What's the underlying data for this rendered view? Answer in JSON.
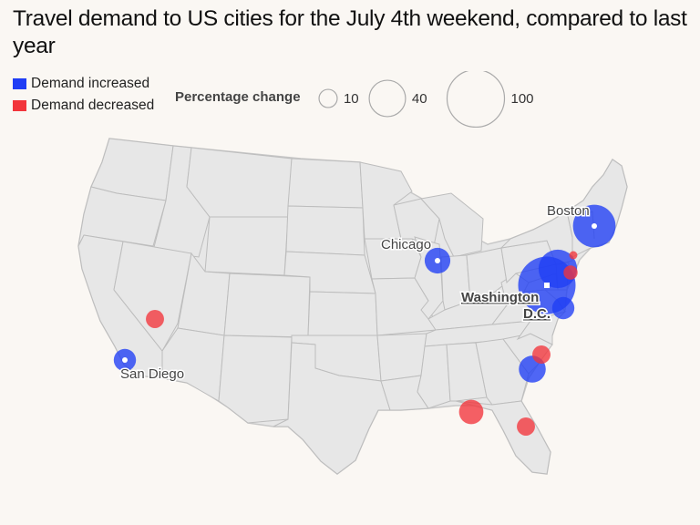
{
  "title": "Travel demand to US cities for the July 4th weekend, compared to last year",
  "legend": {
    "increase": {
      "label": "Demand increased",
      "color": "#1f3df5"
    },
    "decrease": {
      "label": "Demand decreased",
      "color": "#f2353b"
    },
    "size_title": "Percentage change",
    "size_values": [
      10,
      40,
      100
    ]
  },
  "cities": [
    {
      "name": "Boston",
      "labeled": true,
      "change": 55,
      "direction": "increase"
    },
    {
      "name": "Chicago",
      "labeled": true,
      "change": 20,
      "direction": "increase"
    },
    {
      "name": "Washington",
      "name2": "D.C.",
      "labeled": true,
      "change": 100,
      "direction": "increase"
    },
    {
      "name": "San Diego",
      "labeled": true,
      "change": 15,
      "direction": "increase"
    },
    {
      "name": "",
      "labeled": false,
      "change": 45,
      "direction": "increase"
    },
    {
      "name": "",
      "labeled": false,
      "change": 15,
      "direction": "increase"
    },
    {
      "name": "",
      "labeled": false,
      "change": 22,
      "direction": "increase"
    },
    {
      "name": "",
      "labeled": false,
      "change": 10,
      "direction": "decrease"
    },
    {
      "name": "",
      "labeled": false,
      "change": 10,
      "direction": "decrease"
    },
    {
      "name": "",
      "labeled": false,
      "change": 10,
      "direction": "decrease"
    },
    {
      "name": "",
      "labeled": false,
      "change": 18,
      "direction": "decrease"
    },
    {
      "name": "",
      "labeled": false,
      "change": 6,
      "direction": "decrease"
    },
    {
      "name": "",
      "labeled": false,
      "change": 2,
      "direction": "decrease"
    }
  ]
}
